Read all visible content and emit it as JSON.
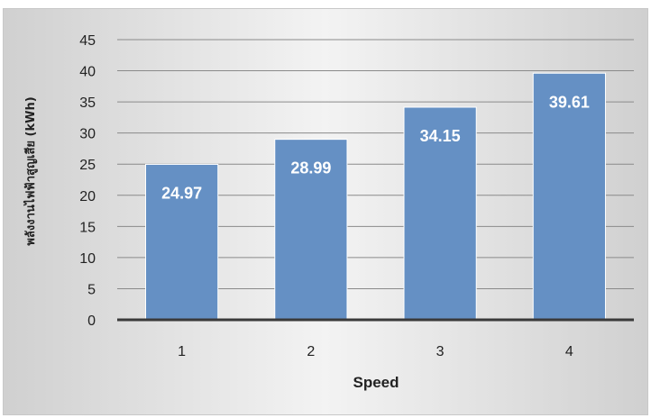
{
  "chart_data": {
    "type": "bar",
    "title": "",
    "xlabel": "Speed",
    "ylabel": "พลังงานไฟฟ้าสูญเสีย (kWh)",
    "categories": [
      "1",
      "2",
      "3",
      "4"
    ],
    "values": [
      24.97,
      28.99,
      34.15,
      39.61
    ],
    "data_labels": [
      "24.97",
      "28.99",
      "34.15",
      "39.61"
    ],
    "ylim": [
      0,
      45
    ],
    "y_ticks": [
      "0",
      "5",
      "10",
      "15",
      "20",
      "25",
      "30",
      "35",
      "40",
      "45"
    ],
    "grid": true,
    "legend": "none",
    "colors": {
      "bar": "#6590c4",
      "bar_border": "#ffffff",
      "grid": "#8a8a8a",
      "axis": "#3a3a3a",
      "tick_text": "#222222",
      "data_label": "#ffffff"
    }
  }
}
